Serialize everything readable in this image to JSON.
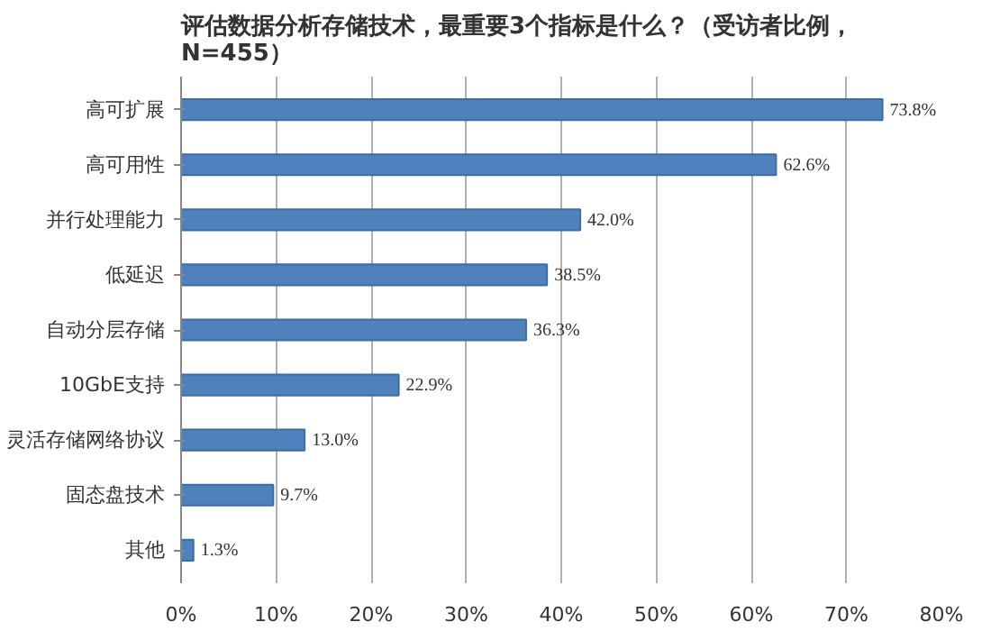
{
  "chart_data": {
    "type": "bar",
    "orientation": "horizontal",
    "title": "评估数据分析存储技术，最重要3个指标是什么？（受访者比例，N=455）",
    "categories": [
      "高可扩展",
      "高可用性",
      "并行处理能力",
      "低延迟",
      "自动分层存储",
      "10GbE支持",
      "灵活存储网络协议",
      "固态盘技术",
      "其他"
    ],
    "values": [
      73.8,
      62.6,
      42.0,
      38.5,
      36.3,
      22.9,
      13.0,
      9.7,
      1.3
    ],
    "value_labels": [
      "73.8%",
      "62.6%",
      "42.0%",
      "38.5%",
      "36.3%",
      "22.9%",
      "13.0%",
      "9.7%",
      "1.3%"
    ],
    "color": "#4f81bd",
    "xlim": [
      0,
      80
    ],
    "xticks": [
      {
        "value": 0,
        "label": "0%"
      },
      {
        "value": 10,
        "label": "10%"
      },
      {
        "value": 20,
        "label": "20%"
      },
      {
        "value": 30,
        "label": "30%"
      },
      {
        "value": 40,
        "label": "40%"
      },
      {
        "value": 50,
        "label": "50%"
      },
      {
        "value": 60,
        "label": "60%"
      },
      {
        "value": 70,
        "label": "70%"
      },
      {
        "value": 80,
        "label": "80%"
      }
    ],
    "grid": "x"
  }
}
